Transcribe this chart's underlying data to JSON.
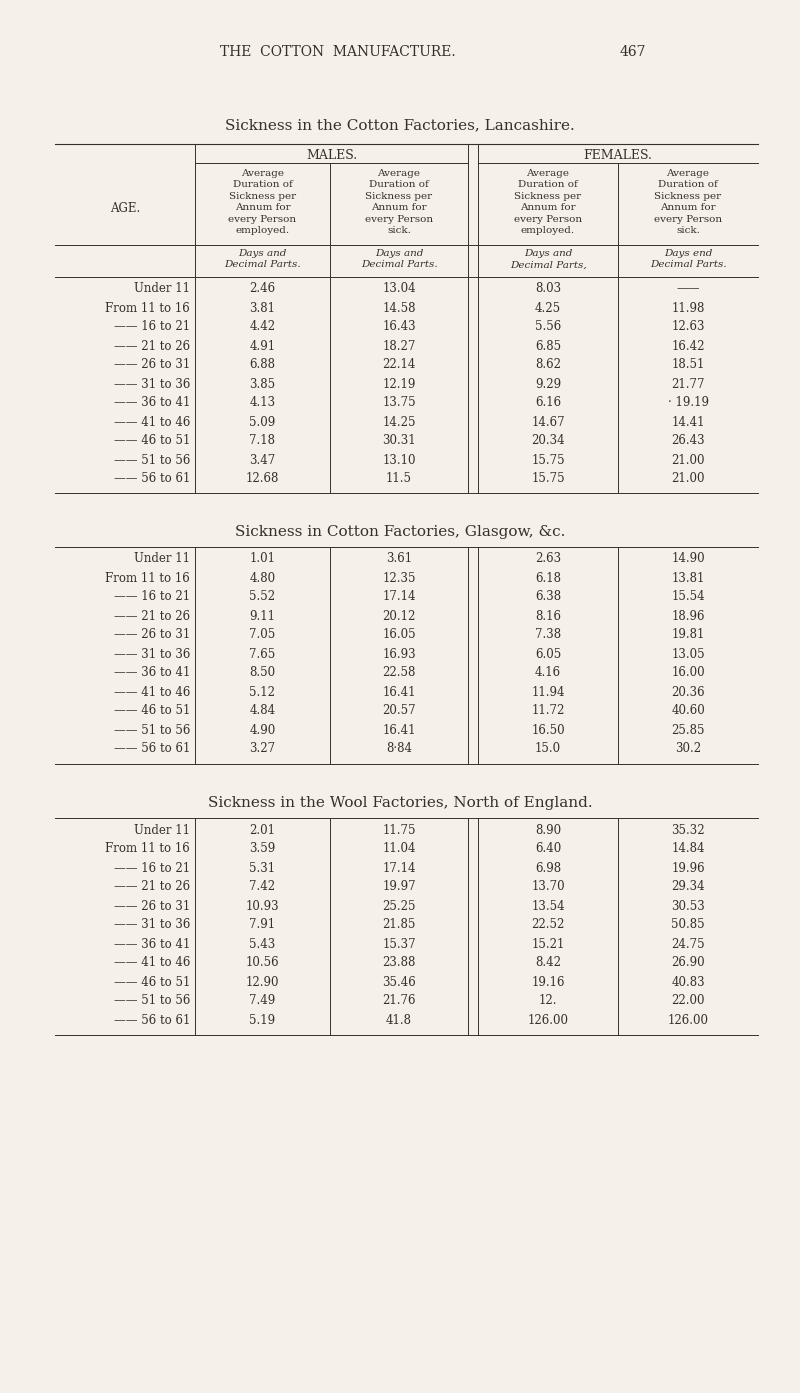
{
  "page_header": "THE  COTTON  MANUFACTURE.",
  "page_number": "467",
  "background_color": "#f5f0e8",
  "text_color": "#3a2e2a",
  "sections": [
    {
      "title": "Sickness in the Cotton Factories, Lancashire.",
      "rows": [
        [
          "Under 11",
          "2.46",
          "13.04",
          "8.03",
          "——"
        ],
        [
          "From 11 to 16",
          "3.81",
          "14.58",
          "4.25",
          "11.98"
        ],
        [
          "—— 16 to 21",
          "4.42",
          "16.43",
          "5.56",
          "12.63"
        ],
        [
          "—— 21 to 26",
          "4.91",
          "18.27",
          "6.85",
          "16.42"
        ],
        [
          "—— 26 to 31",
          "6.88",
          "22.14",
          "8.62",
          "18.51"
        ],
        [
          "—— 31 to 36",
          "3.85",
          "12.19",
          "9.29",
          "21.77"
        ],
        [
          "—— 36 to 41",
          "4.13",
          "13.75",
          "6.16",
          "· 19.19"
        ],
        [
          "—— 41 to 46",
          "5.09",
          "14.25",
          "14.67",
          "14.41"
        ],
        [
          "—— 46 to 51",
          "7.18",
          "30.31",
          "20.34",
          "26.43"
        ],
        [
          "—— 51 to 56",
          "3.47",
          "13.10",
          "15.75",
          "21.00"
        ],
        [
          "—— 56 to 61",
          "12.68",
          "11.5",
          "15.75",
          "21.00"
        ]
      ]
    },
    {
      "title": "Sickness in Cotton Factories, Glasgow, &c.",
      "rows": [
        [
          "Under 11",
          "1.01",
          "3.61",
          "2.63",
          "14.90"
        ],
        [
          "From 11 to 16",
          "4.80",
          "12.35",
          "6.18",
          "13.81"
        ],
        [
          "—— 16 to 21",
          "5.52",
          "17.14",
          "6.38",
          "15.54"
        ],
        [
          "—— 21 to 26",
          "9.11",
          "20.12",
          "8.16",
          "18.96"
        ],
        [
          "—— 26 to 31",
          "7.05",
          "16.05",
          "7.38",
          "19.81"
        ],
        [
          "—— 31 to 36",
          "7.65",
          "16.93",
          "6.05",
          "13.05"
        ],
        [
          "—— 36 to 41",
          "8.50",
          "22.58",
          "4.16",
          "16.00"
        ],
        [
          "—— 41 to 46",
          "5.12",
          "16.41",
          "11.94",
          "20.36"
        ],
        [
          "—— 46 to 51",
          "4.84",
          "20.57",
          "11.72",
          "40.60"
        ],
        [
          "—— 51 to 56",
          "4.90",
          "16.41",
          "16.50",
          "25.85"
        ],
        [
          "—— 56 to 61",
          "3.27",
          "8·84",
          "15.0",
          "30.2"
        ]
      ]
    },
    {
      "title": "Sickness in the Wool Factories, North of England.",
      "rows": [
        [
          "Under 11",
          "2.01",
          "11.75",
          "8.90",
          "35.32"
        ],
        [
          "From 11 to 16",
          "3.59",
          "11.04",
          "6.40",
          "14.84"
        ],
        [
          "—— 16 to 21",
          "5.31",
          "17.14",
          "6.98",
          "19.96"
        ],
        [
          "—— 21 to 26",
          "7.42",
          "19.97",
          "13.70",
          "29.34"
        ],
        [
          "—— 26 to 31",
          "10.93",
          "25.25",
          "13.54",
          "30.53"
        ],
        [
          "—— 31 to 36",
          "7.91",
          "21.85",
          "22.52",
          "50.85"
        ],
        [
          "—— 36 to 41",
          "5.43",
          "15.37",
          "15.21",
          "24.75"
        ],
        [
          "—— 41 to 46",
          "10.56",
          "23.88",
          "8.42",
          "26.90"
        ],
        [
          "—— 46 to 51",
          "12.90",
          "35.46",
          "19.16",
          "40.83"
        ],
        [
          "—— 51 to 56",
          "7.49",
          "21.76",
          "12.",
          "22.00"
        ],
        [
          "—— 56 to 61",
          "5.19",
          "41.8",
          "126.00",
          "126.00"
        ]
      ]
    }
  ]
}
